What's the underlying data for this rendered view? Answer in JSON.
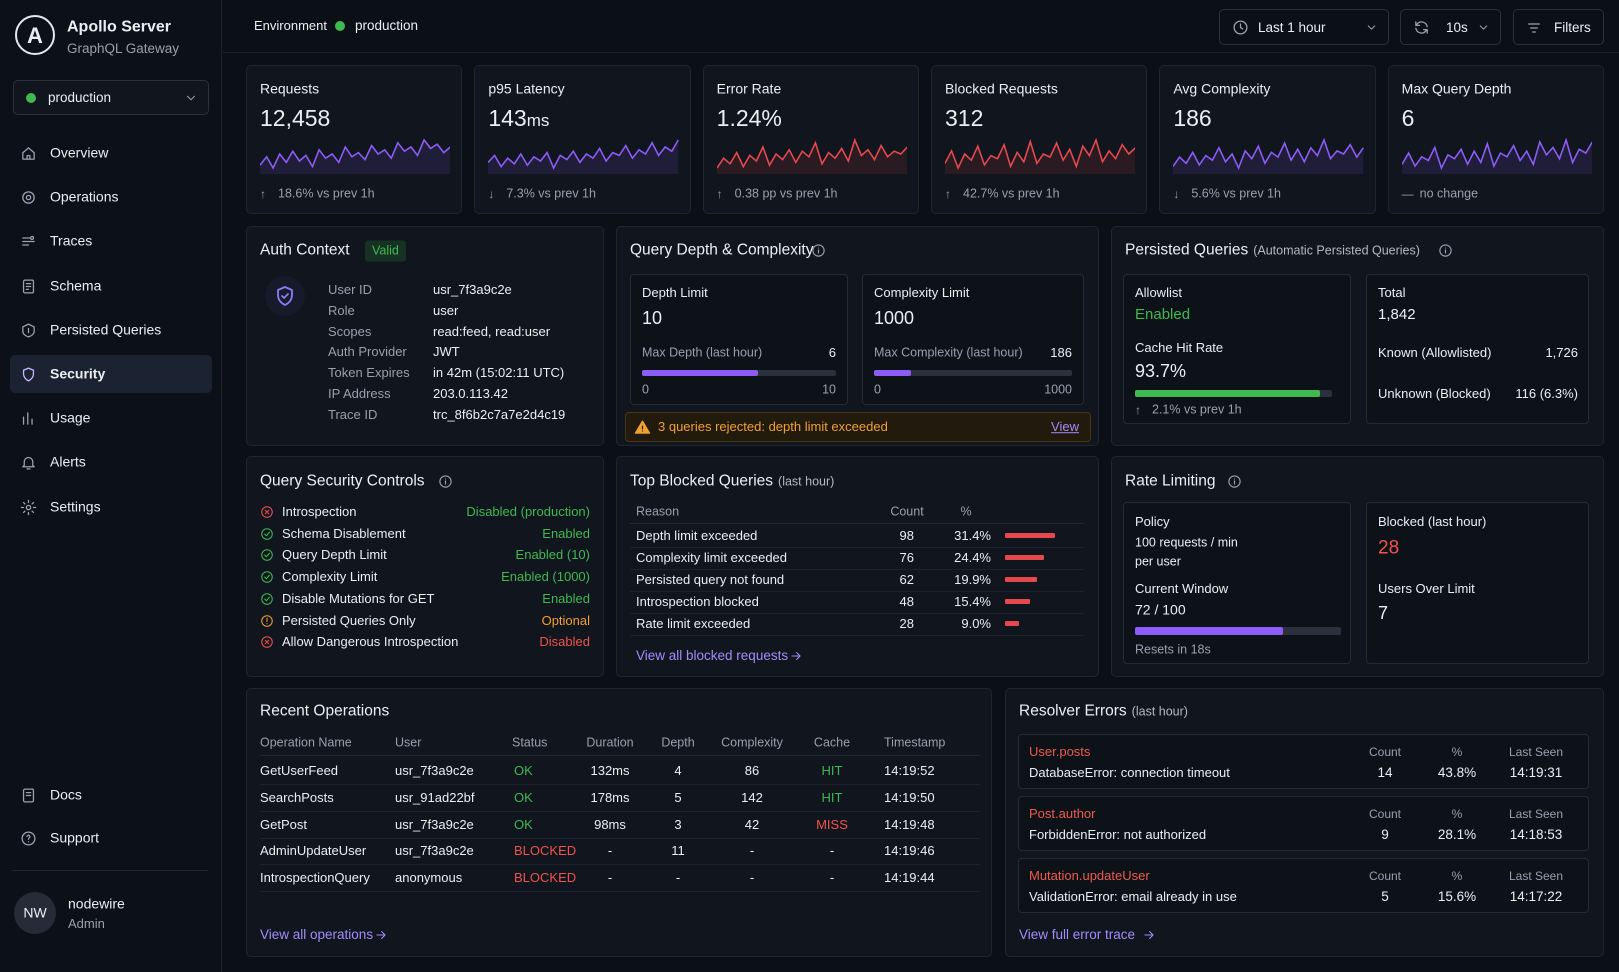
{
  "sidebar": {
    "logo": "A",
    "brand": "Apollo Server",
    "brand_subtitle": "GraphQL Gateway",
    "environment": "production",
    "nav": [
      {
        "label": "Overview"
      },
      {
        "label": "Operations"
      },
      {
        "label": "Traces"
      },
      {
        "label": "Schema"
      },
      {
        "label": "Persisted Queries"
      },
      {
        "label": "Security",
        "active": true
      },
      {
        "label": "Usage"
      },
      {
        "label": "Alerts"
      },
      {
        "label": "Settings"
      }
    ],
    "footer_nav": [
      {
        "label": "Docs"
      },
      {
        "label": "Support"
      }
    ],
    "user": {
      "initials": "NW",
      "name": "nodewire",
      "role": "Admin"
    }
  },
  "topbar": {
    "environment_label": "Environment",
    "environment": "production",
    "time_range": "Last 1 hour",
    "refresh": "10s",
    "filters": "Filters"
  },
  "kpis": [
    {
      "label": "Requests",
      "value": "12,458",
      "trend_icon": "↑",
      "trend": "18.6% vs prev 1h",
      "color": "#8b5cf6",
      "sparkline": [
        42,
        48,
        40,
        50,
        44,
        52,
        45,
        49,
        41,
        53,
        47,
        50,
        44,
        55,
        48,
        51,
        46,
        56,
        50,
        53,
        47,
        58,
        52,
        55,
        49,
        60,
        54,
        57,
        51,
        55
      ]
    },
    {
      "label": "p95 Latency",
      "value": "143",
      "unit": "ms",
      "trend_icon": "↓",
      "trend": "7.3% vs prev 1h",
      "color": "#8b5cf6",
      "sparkline": [
        45,
        50,
        42,
        48,
        44,
        51,
        43,
        49,
        46,
        52,
        41,
        50,
        47,
        53,
        45,
        51,
        48,
        55,
        46,
        52,
        50,
        57,
        48,
        54,
        51,
        59,
        50,
        56,
        53,
        61
      ]
    },
    {
      "label": "Error Rate",
      "value": "1.24%",
      "trend_icon": "↑",
      "trend": "0.38 pp vs prev 1h",
      "color": "#e5484d",
      "sparkline": [
        40,
        47,
        43,
        51,
        41,
        49,
        45,
        55,
        42,
        50,
        46,
        53,
        44,
        52,
        48,
        58,
        43,
        51,
        47,
        54,
        45,
        60,
        49,
        53,
        46,
        56,
        48,
        52,
        50,
        55
      ]
    },
    {
      "label": "Blocked Requests",
      "value": "312",
      "trend_icon": "↑",
      "trend": "42.7% vs prev 1h",
      "color": "#e5484d",
      "sparkline": [
        44,
        52,
        41,
        50,
        46,
        55,
        43,
        49,
        47,
        56,
        42,
        51,
        45,
        58,
        44,
        50,
        48,
        57,
        46,
        53,
        42,
        55,
        49,
        59,
        45,
        52,
        47,
        56,
        50,
        54
      ]
    },
    {
      "label": "Avg Complexity",
      "value": "186",
      "trend_icon": "↓",
      "trend": "5.6% vs prev 1h",
      "color": "#8b5cf6",
      "sparkline": [
        43,
        49,
        45,
        52,
        44,
        50,
        47,
        55,
        46,
        51,
        42,
        53,
        48,
        56,
        45,
        52,
        49,
        58,
        47,
        54,
        46,
        55,
        50,
        60,
        48,
        53,
        51,
        57,
        49,
        55
      ]
    },
    {
      "label": "Max Query Depth",
      "value": "6",
      "trend_icon": "—",
      "trend": "no change",
      "color": "#8b5cf6",
      "sparkline": [
        44,
        50,
        43,
        48,
        46,
        53,
        42,
        49,
        47,
        52,
        44,
        51,
        45,
        55,
        43,
        50,
        48,
        54,
        46,
        51,
        44,
        56,
        49,
        53,
        47,
        57,
        45,
        52,
        50,
        56
      ]
    }
  ],
  "auth_context": {
    "title": "Auth Context",
    "badge": "Valid",
    "fields": [
      {
        "label": "User ID",
        "value": "usr_7f3a9c2e"
      },
      {
        "label": "Role",
        "value": "user"
      },
      {
        "label": "Scopes",
        "value": "read:feed, read:user"
      },
      {
        "label": "Auth Provider",
        "value": "JWT"
      },
      {
        "label": "Token Expires",
        "value": "in 42m (15:02:11 UTC)"
      },
      {
        "label": "IP Address",
        "value": "203.0.113.42"
      },
      {
        "label": "Trace ID",
        "value": "trc_8f6b2c7a7e2d4c19"
      }
    ]
  },
  "query_limits": {
    "title": "Query Depth & Complexity",
    "boxes": [
      {
        "title": "Depth Limit",
        "limit": "10",
        "current_label": "Max Depth (last hour)",
        "current": "6",
        "min": "0",
        "max": "10"
      },
      {
        "title": "Complexity Limit",
        "limit": "1000",
        "current_label": "Max Complexity (last hour)",
        "current": "186",
        "min": "0",
        "max": "1000"
      }
    ],
    "bar_color": "#8b5cf6",
    "alert": {
      "text": "3 queries rejected: depth limit exceeded",
      "link": "View"
    }
  },
  "persisted_queries": {
    "title": "Persisted Queries",
    "subtitle": "(Automatic Persisted Queries)",
    "allowlist_label": "Allowlist",
    "allowlist": "Enabled",
    "cache_label": "Cache Hit Rate",
    "cache_hit_rate": "93.7%",
    "bar_color": "#3fb950",
    "cache_trend_icon": "↑",
    "cache_trend": "2.1% vs prev 1h",
    "total_label": "Total",
    "total": "1,842",
    "breakdown": [
      {
        "label": "Known (Allowlisted)",
        "value": "1,726"
      },
      {
        "label": "Unknown (Blocked)",
        "value": "116 (6.3%)"
      }
    ]
  },
  "security_controls": {
    "title": "Query Security Controls",
    "items": [
      {
        "label": "Introspection",
        "status": "Disabled (production)",
        "icon": "error",
        "status_color": "#3fb950"
      },
      {
        "label": "Schema Disablement",
        "status": "Enabled",
        "icon": "ok",
        "status_color": "#3fb950"
      },
      {
        "label": "Query Depth Limit",
        "status": "Enabled (10)",
        "icon": "ok",
        "status_color": "#3fb950"
      },
      {
        "label": "Complexity Limit",
        "status": "Enabled (1000)",
        "icon": "ok",
        "status_color": "#3fb950"
      },
      {
        "label": "Disable Mutations for GET",
        "status": "Enabled",
        "icon": "ok",
        "status_color": "#3fb950"
      },
      {
        "label": "Persisted Queries Only",
        "status": "Optional",
        "icon": "warning",
        "status_color": "#f0a030"
      },
      {
        "label": "Allow Dangerous Introspection",
        "status": "Disabled",
        "icon": "error",
        "status_color": "#f0524f"
      }
    ]
  },
  "blocked_queries": {
    "title": "Top Blocked Queries",
    "subtitle": "(last hour)",
    "columns": [
      "Reason",
      "Count",
      "%"
    ],
    "rows": [
      [
        "Depth limit exceeded",
        "98",
        "31.4%"
      ],
      [
        "Complexity limit exceeded",
        "76",
        "24.4%"
      ],
      [
        "Persisted query not found",
        "62",
        "19.9%"
      ],
      [
        "Introspection blocked",
        "48",
        "15.4%"
      ],
      [
        "Rate limit exceeded",
        "28",
        "9.0%"
      ]
    ],
    "bar_color": "#e5484d",
    "link": "View all blocked requests"
  },
  "rate_limiting": {
    "title": "Rate Limiting",
    "policy_label": "Policy",
    "policy": "100 requests / min",
    "policy_scope": "per user",
    "window_label": "Current Window",
    "window": "72 / 100",
    "bar_color": "#8b5cf6",
    "resets": "Resets in 18s",
    "blocked_label": "Blocked (last hour)",
    "blocked": "28",
    "users_over_label": "Users Over Limit",
    "users_over": "7"
  },
  "recent_operations": {
    "title": "Recent Operations",
    "columns": [
      "Operation Name",
      "User",
      "Status",
      "Duration",
      "Depth",
      "Complexity",
      "Cache",
      "Timestamp"
    ],
    "rows": [
      [
        "GetUserFeed",
        "usr_7f3a9c2e",
        "OK",
        "132ms",
        "4",
        "86",
        "HIT",
        "14:19:52"
      ],
      [
        "SearchPosts",
        "usr_91ad22bf",
        "OK",
        "178ms",
        "5",
        "142",
        "HIT",
        "14:19:50"
      ],
      [
        "GetPost",
        "usr_7f3a9c2e",
        "OK",
        "98ms",
        "3",
        "42",
        "MISS",
        "14:19:48"
      ],
      [
        "AdminUpdateUser",
        "usr_7f3a9c2e",
        "BLOCKED",
        "-",
        "11",
        "-",
        "-",
        "14:19:46"
      ],
      [
        "IntrospectionQuery",
        "anonymous",
        "BLOCKED",
        "-",
        "-",
        "-",
        "-",
        "14:19:44"
      ]
    ],
    "cell_colors": {
      "OK": "#3fb950",
      "BLOCKED": "#f0524f",
      "HIT": "#3fb950",
      "MISS": "#f0524f"
    },
    "link": "View all operations"
  },
  "resolver_errors": {
    "title": "Resolver Errors",
    "subtitle": "(last hour)",
    "columns": [
      "Count",
      "%",
      "Last Seen"
    ],
    "items": [
      {
        "path": "User.posts",
        "message": "DatabaseError: connection timeout",
        "count": "14",
        "percent": "43.8%",
        "last_seen": "14:19:31"
      },
      {
        "path": "Post.author",
        "message": "ForbiddenError: not authorized",
        "count": "9",
        "percent": "28.1%",
        "last_seen": "14:18:53"
      },
      {
        "path": "Mutation.updateUser",
        "message": "ValidationError: email already in use",
        "count": "5",
        "percent": "15.6%",
        "last_seen": "14:17:22"
      }
    ],
    "link": "View full error trace"
  }
}
